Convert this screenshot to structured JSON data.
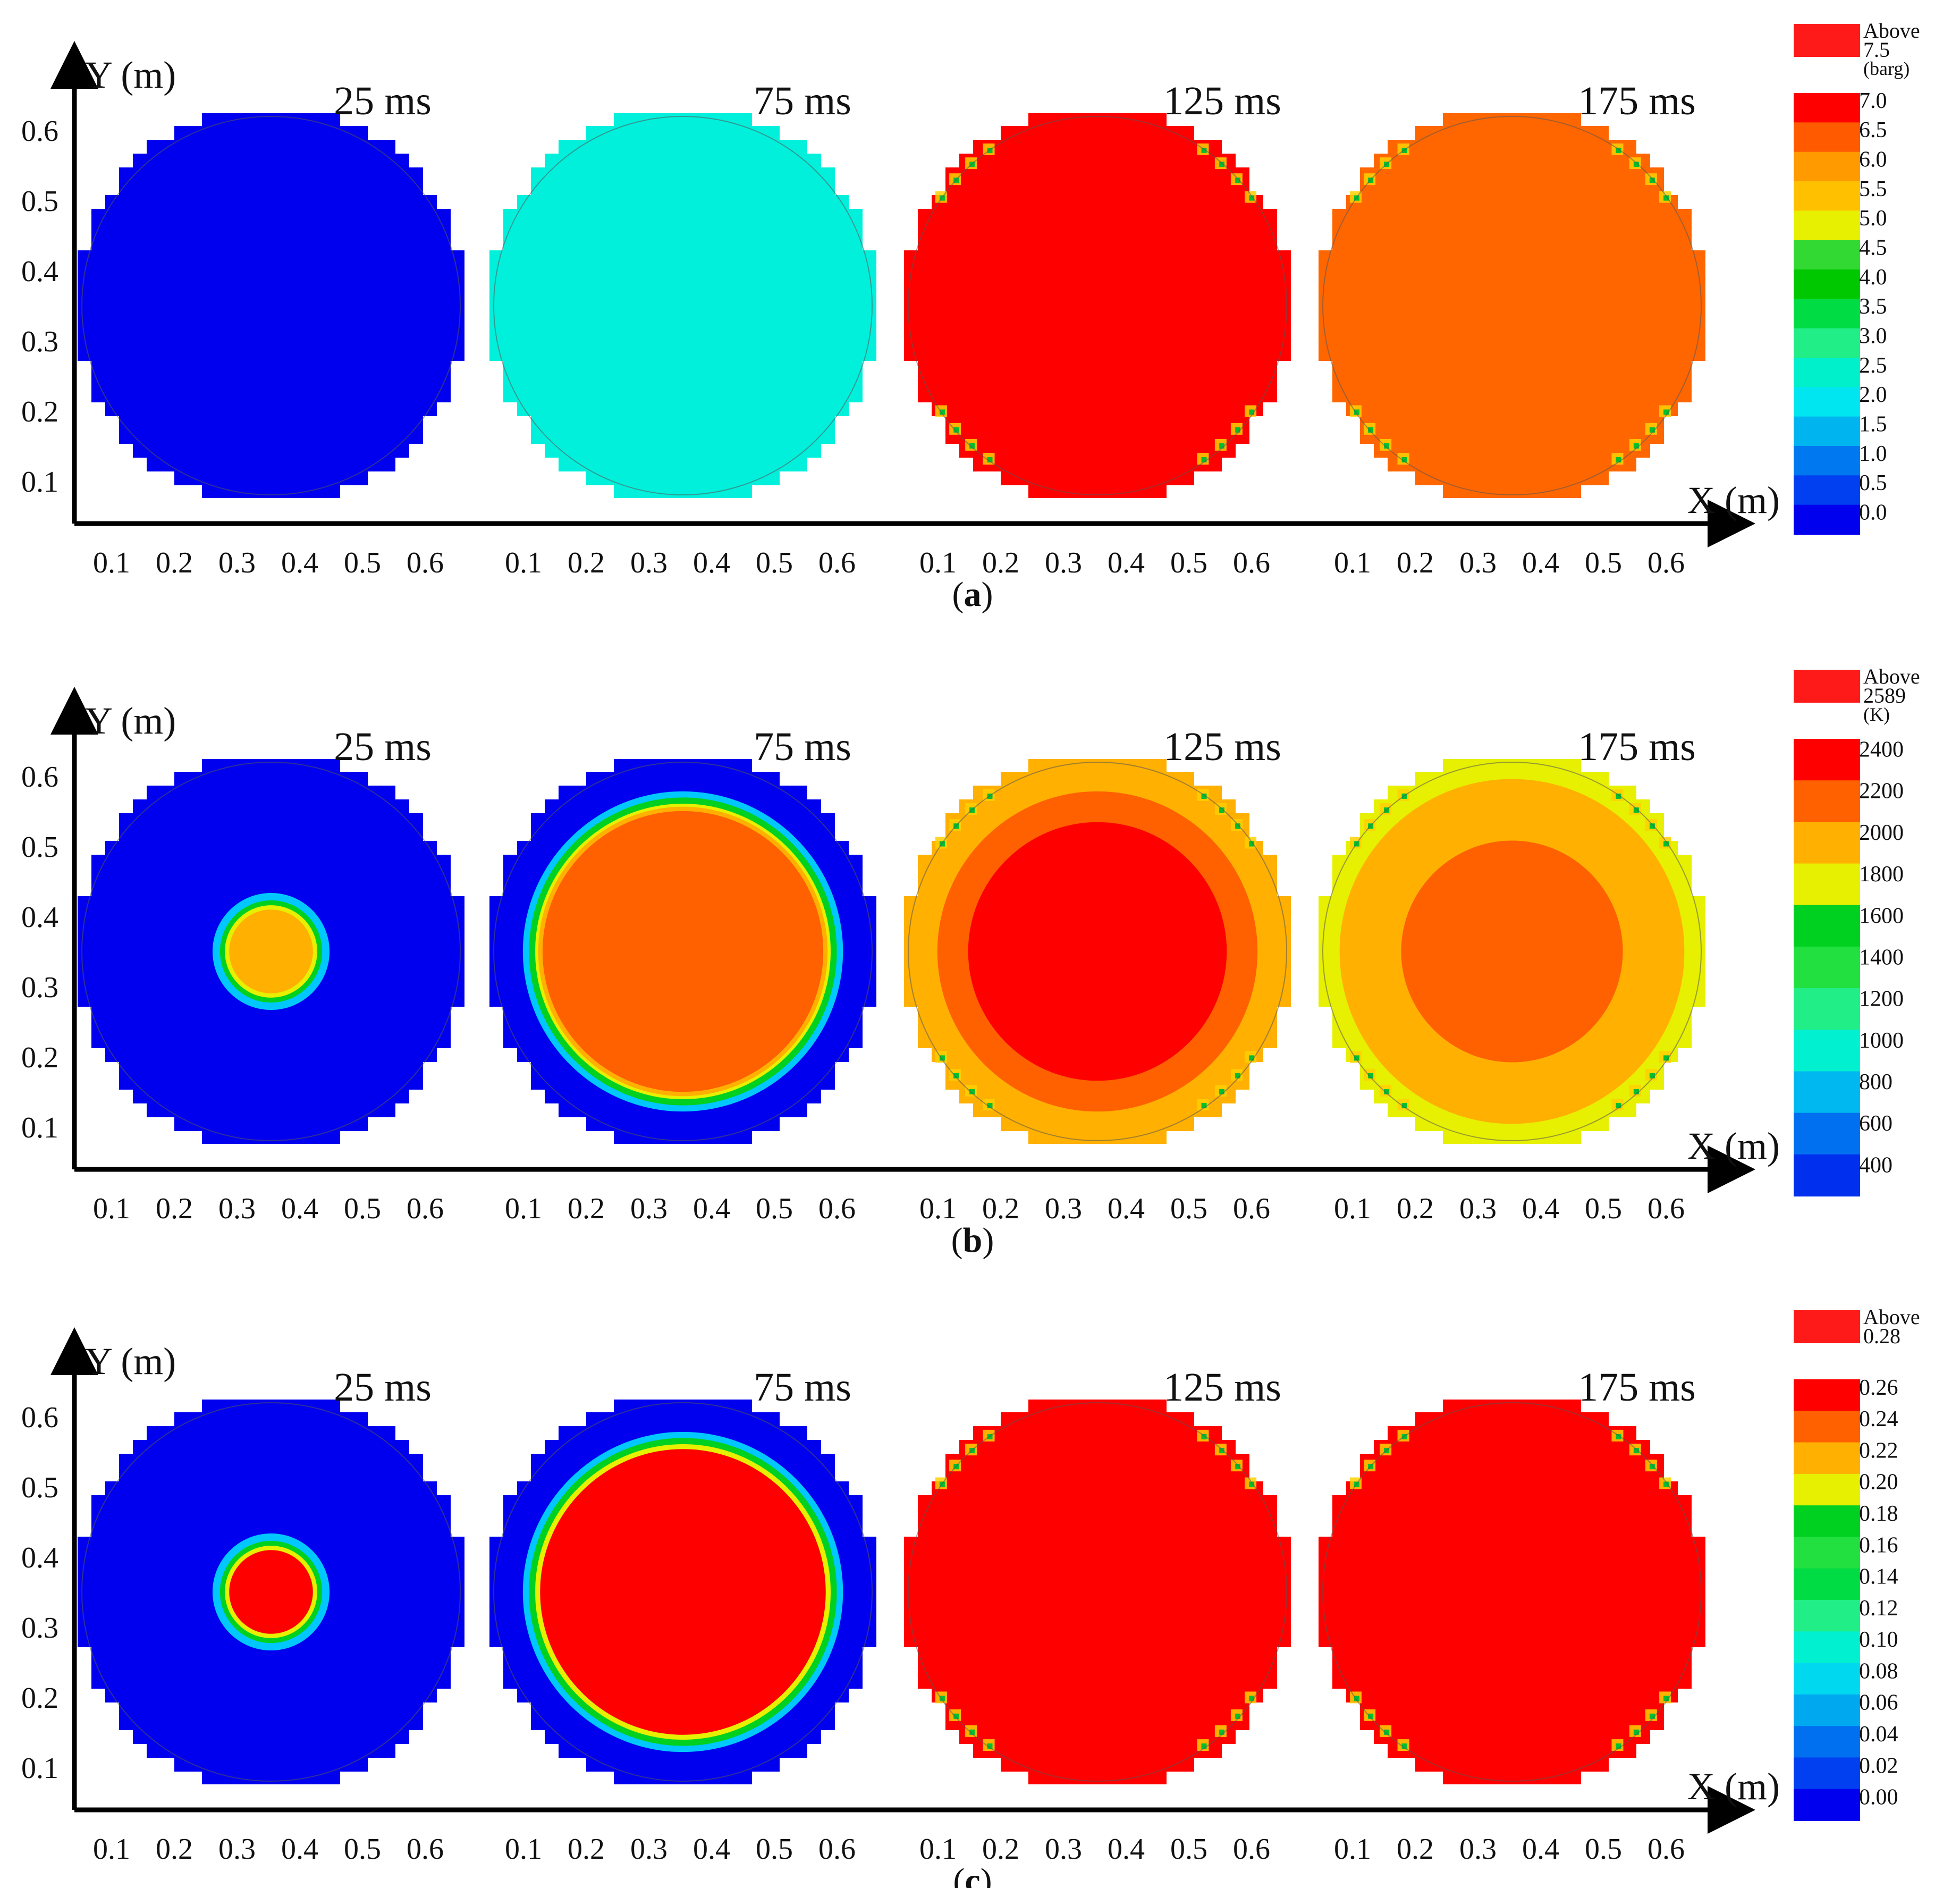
{
  "panels": [
    {
      "caption": "a",
      "y_axis_label": "Y (m)",
      "x_axis_label": "X (m)",
      "time_labels": [
        "25 ms",
        "75 ms",
        "125 ms",
        "175 ms"
      ],
      "x_ticks": [
        "0.1",
        "0.2",
        "0.3",
        "0.4",
        "0.5",
        "0.6"
      ],
      "y_ticks": [
        "0.1",
        "0.2",
        "0.3",
        "0.4",
        "0.5",
        "0.6"
      ],
      "legend": {
        "above_word": "Above",
        "above_value": "7.5",
        "unit": "(barg)",
        "above_color": "#ff1a1a",
        "labels": [
          "7.0",
          "6.5",
          "6.0",
          "5.5",
          "5.0",
          "4.5",
          "4.0",
          "3.5",
          "3.0",
          "2.5",
          "2.0",
          "1.5",
          "1.0",
          "0.5",
          "0.0"
        ],
        "colors": [
          "#ff0000",
          "#ff5a00",
          "#ff9a00",
          "#ffc000",
          "#e6f000",
          "#33d933",
          "#00c800",
          "#00dd44",
          "#22ee88",
          "#00f0cc",
          "#00e6f0",
          "#00b4f0",
          "#0078f0",
          "#0040f0",
          "#0000ee"
        ]
      }
    },
    {
      "caption": "b",
      "y_axis_label": "Y (m)",
      "x_axis_label": "X (m)",
      "time_labels": [
        "25 ms",
        "75 ms",
        "125 ms",
        "175 ms"
      ],
      "x_ticks": [
        "0.1",
        "0.2",
        "0.3",
        "0.4",
        "0.5",
        "0.6"
      ],
      "y_ticks": [
        "0.1",
        "0.2",
        "0.3",
        "0.4",
        "0.5",
        "0.6"
      ],
      "legend": {
        "above_word": "Above",
        "above_value": "2589",
        "unit": "(K)",
        "above_color": "#ff1a1a",
        "labels": [
          "2400",
          "2200",
          "2000",
          "1800",
          "1600",
          "1400",
          "1200",
          "1000",
          "800",
          "600",
          "400"
        ],
        "colors": [
          "#ff0000",
          "#ff6000",
          "#ffb000",
          "#e6f000",
          "#00d020",
          "#22e040",
          "#22ee88",
          "#00f0d0",
          "#00b8f0",
          "#0070f0",
          "#0030ee"
        ]
      }
    },
    {
      "caption": "c",
      "y_axis_label": "Y (m)",
      "x_axis_label": "X (m)",
      "time_labels": [
        "25 ms",
        "75 ms",
        "125 ms",
        "175 ms"
      ],
      "x_ticks": [
        "0.1",
        "0.2",
        "0.3",
        "0.4",
        "0.5",
        "0.6"
      ],
      "y_ticks": [
        "0.1",
        "0.2",
        "0.3",
        "0.4",
        "0.5",
        "0.6"
      ],
      "legend": {
        "above_word": "Above",
        "above_value": "0.28",
        "unit": "",
        "above_color": "#ff1a1a",
        "labels": [
          "0.26",
          "0.24",
          "0.22",
          "0.20",
          "0.18",
          "0.16",
          "0.14",
          "0.12",
          "0.10",
          "0.08",
          "0.06",
          "0.04",
          "0.02",
          "0.00"
        ],
        "colors": [
          "#ff0000",
          "#ff6000",
          "#ffb000",
          "#e6f000",
          "#00d020",
          "#22e040",
          "#00dd44",
          "#22ee88",
          "#00f0d0",
          "#00d8f0",
          "#00a8f0",
          "#0070f0",
          "#0040f0",
          "#0000ee"
        ]
      }
    }
  ],
  "chart_data": [
    {
      "type": "heatmap",
      "panel": "a",
      "quantity_unit": "barg",
      "xlim": [
        0,
        0.6
      ],
      "ylim": [
        0,
        0.6
      ],
      "frames": [
        {
          "time": "25 ms",
          "fill": "#0000ee",
          "ring": []
        },
        {
          "time": "75 ms",
          "fill": "#00f0dc",
          "ring": []
        },
        {
          "time": "125 ms",
          "fill": "#ff0000",
          "ring": []
        },
        {
          "time": "175 ms",
          "fill": "#ff6600",
          "ring": []
        }
      ]
    },
    {
      "type": "heatmap",
      "panel": "b",
      "quantity_unit": "K",
      "xlim": [
        0,
        0.6
      ],
      "ylim": [
        0,
        0.6
      ],
      "frames": [
        {
          "time": "25 ms",
          "fill": "#0000ee",
          "ring": [
            {
              "color": "#00c8ff",
              "size": 0.095
            },
            {
              "color": "#00d020",
              "size": 0.083
            },
            {
              "color": "#e6f000",
              "size": 0.075
            },
            {
              "color": "#ffb000",
              "size": 0.068
            }
          ]
        },
        {
          "time": "75 ms",
          "fill": "#0000ee",
          "ring": [
            {
              "color": "#00c8ff",
              "size": 0.26
            },
            {
              "color": "#00d020",
              "size": 0.25
            },
            {
              "color": "#e6f000",
              "size": 0.24
            },
            {
              "color": "#ffb000",
              "size": 0.235
            },
            {
              "color": "#ff6000",
              "size": 0.228
            }
          ]
        },
        {
          "time": "125 ms",
          "fill": "#ffb000",
          "ring": [
            {
              "color": "#ff6000",
              "size": 0.26
            },
            {
              "color": "#ff0000",
              "size": 0.21
            }
          ]
        },
        {
          "time": "175 ms",
          "fill": "#e6f000",
          "ring": [
            {
              "color": "#ffb000",
              "size": 0.28
            },
            {
              "color": "#ff6000",
              "size": 0.18
            }
          ]
        }
      ]
    },
    {
      "type": "heatmap",
      "panel": "c",
      "quantity_unit": "",
      "xlim": [
        0,
        0.6
      ],
      "ylim": [
        0,
        0.6
      ],
      "frames": [
        {
          "time": "25 ms",
          "fill": "#0000ee",
          "ring": [
            {
              "color": "#00c8ff",
              "size": 0.095
            },
            {
              "color": "#00d020",
              "size": 0.083
            },
            {
              "color": "#e6f000",
              "size": 0.075
            },
            {
              "color": "#ff0000",
              "size": 0.068
            }
          ]
        },
        {
          "time": "75 ms",
          "fill": "#0000ee",
          "ring": [
            {
              "color": "#00c8ff",
              "size": 0.26
            },
            {
              "color": "#00d020",
              "size": 0.25
            },
            {
              "color": "#e6f000",
              "size": 0.24
            },
            {
              "color": "#ff0000",
              "size": 0.232
            }
          ]
        },
        {
          "time": "125 ms",
          "fill": "#ff0000",
          "ring": []
        },
        {
          "time": "175 ms",
          "fill": "#ff0000",
          "ring": []
        }
      ]
    }
  ]
}
